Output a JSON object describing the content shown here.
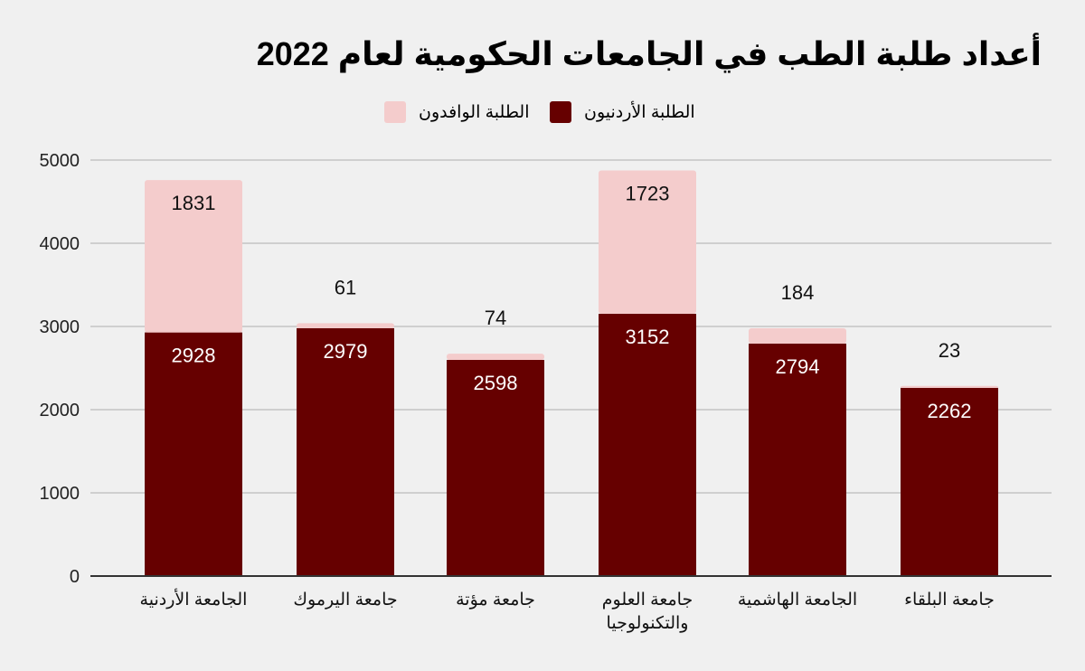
{
  "chart_data": {
    "type": "bar",
    "stacked": true,
    "title": "أعداد طلبة الطب في الجامعات الحكومية لعام 2022",
    "categories": [
      [
        "الجامعة الأردنية"
      ],
      [
        "جامعة اليرموك"
      ],
      [
        "جامعة مؤتة"
      ],
      [
        "جامعة العلوم",
        "والتكنولوجيا"
      ],
      [
        "الجامعة الهاشمية"
      ],
      [
        "جامعة البلقاء"
      ]
    ],
    "series": [
      {
        "name": "الطلبة الأردنيون",
        "values": [
          2928,
          2979,
          2598,
          3152,
          2794,
          2262
        ],
        "color": "#660000"
      },
      {
        "name": "الطلبة الوافدون",
        "values": [
          1831,
          61,
          74,
          1723,
          184,
          23
        ],
        "color": "#f4cccc"
      }
    ],
    "ylim": [
      0,
      5000
    ],
    "yticks": [
      0,
      1000,
      2000,
      3000,
      4000,
      5000
    ],
    "grid": true,
    "legend": "top-center"
  }
}
